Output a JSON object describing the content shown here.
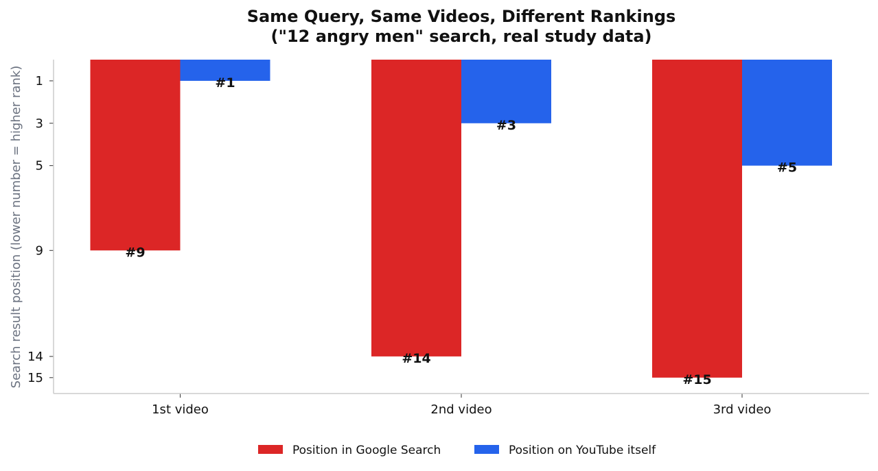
{
  "chart_data": {
    "type": "bar",
    "title_lines": [
      "Same Query, Same Videos, Different Rankings",
      "(\"12 angry men\" search, real study data)"
    ],
    "xlabel": "",
    "ylabel": "Search result position (lower number = higher rank)",
    "categories": [
      "1st video",
      "2nd video",
      "3rd video"
    ],
    "y_ticks": [
      1,
      3,
      5,
      9,
      14,
      15
    ],
    "y_inverted": true,
    "ylim": [
      0,
      15.75
    ],
    "grid": false,
    "legend_position": "bottom-center",
    "series": [
      {
        "name": "Position in Google Search",
        "color": "#dc2626",
        "values": [
          9,
          14,
          15
        ],
        "labels": [
          "#9",
          "#14",
          "#15"
        ]
      },
      {
        "name": "Position on YouTube itself",
        "color": "#2563eb",
        "values": [
          1,
          3,
          5
        ],
        "labels": [
          "#1",
          "#3",
          "#5"
        ]
      }
    ]
  }
}
